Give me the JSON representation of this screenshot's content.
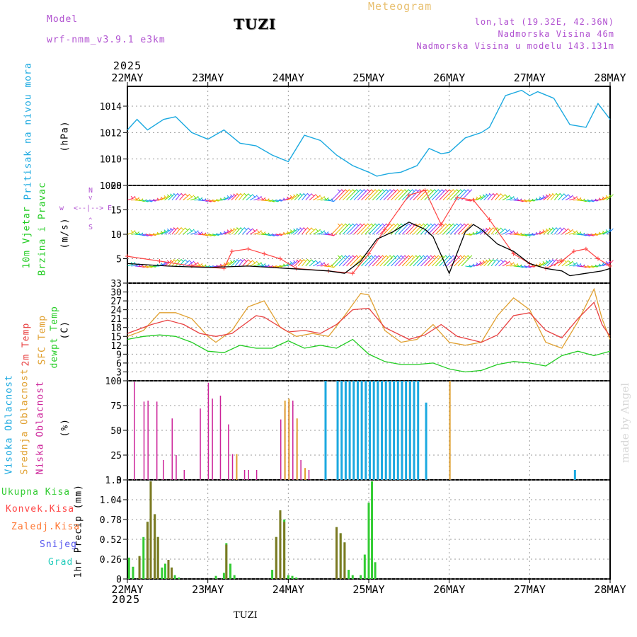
{
  "header": {
    "model_label": "Model",
    "model_name": "wrf-nmm_v3.9.1 e3km",
    "station": "TUZI",
    "meteogram": "Meteogram",
    "lonlat": "lon,lat (19.32E, 42.36N)",
    "altitude": "Nadmorska Visina 46m",
    "model_altitude": "Nadmorska Visina u modelu 143.131m",
    "year_top": "2025",
    "year_bottom": "2025",
    "footer_station": "TUZI",
    "credit": "made by Angel"
  },
  "colors": {
    "pressure": "#1ba9e0",
    "wind_speed": "#000000",
    "gust": "#ff4444",
    "t2m": "#e84040",
    "sfc": "#e0a030",
    "dewpoint": "#22cc22",
    "high_cloud": "#1ba9e0",
    "mid_cloud": "#e0a030",
    "low_cloud": "#cc2299",
    "total_precip": "#33cc33",
    "conv_precip": "#ff4444",
    "frozen": "#ff7733",
    "snow": "#5555ee",
    "hail": "#22ccbb",
    "purple_text": "#b050d0"
  },
  "chart_data": [
    {
      "type": "line",
      "title": "Pritisak na nivou mora",
      "ylabel": "Pritisak na nivou mora",
      "unit": "(hPa)",
      "ylim": [
        1008,
        1015.5
      ],
      "yticks": [
        "1008",
        "1010",
        "1012",
        "1014"
      ],
      "x_days": [
        "22MAY",
        "23MAY",
        "24MAY",
        "25MAY",
        "26MAY",
        "27MAY",
        "28MAY"
      ],
      "x": [
        0,
        0.12,
        0.25,
        0.45,
        0.6,
        0.8,
        1,
        1.2,
        1.4,
        1.6,
        1.8,
        2,
        2.2,
        2.4,
        2.6,
        2.8,
        3,
        3.1,
        3.25,
        3.4,
        3.6,
        3.75,
        3.9,
        4.0,
        4.2,
        4.4,
        4.5,
        4.7,
        4.9,
        5.0,
        5.1,
        5.3,
        5.5,
        5.7,
        5.85,
        6.0
      ],
      "values": [
        1012.2,
        1013.0,
        1012.2,
        1013.0,
        1013.2,
        1012.0,
        1011.5,
        1012.2,
        1011.2,
        1011.0,
        1010.3,
        1009.8,
        1011.8,
        1011.4,
        1010.3,
        1009.5,
        1009.0,
        1008.7,
        1008.9,
        1009.0,
        1009.5,
        1010.8,
        1010.4,
        1010.5,
        1011.6,
        1012.0,
        1012.4,
        1014.8,
        1015.2,
        1014.8,
        1015.1,
        1014.6,
        1012.6,
        1012.4,
        1014.2,
        1013.0
      ]
    },
    {
      "type": "line",
      "title": "10m Vjetar Brzina i Pravac",
      "ylabel": "10m Vjetar Brzina i Pravac",
      "unit": "(m/s)",
      "ylim": [
        0,
        20
      ],
      "yticks": [
        "5",
        "10",
        "15",
        "20"
      ],
      "compass": [
        "w",
        "E",
        "N",
        "S"
      ],
      "compass_arrows": [
        "<--|-->",
        "^",
        "v"
      ],
      "series": [
        {
          "name": "wind_speed",
          "x": [
            0,
            0.5,
            1,
            1.5,
            2,
            2.5,
            2.7,
            2.9,
            3.1,
            3.3,
            3.5,
            3.7,
            3.8,
            4.0,
            4.2,
            4.3,
            4.4,
            4.6,
            4.8,
            5.0,
            5.2,
            5.4,
            5.5,
            5.7,
            5.9,
            6.0
          ],
          "values": [
            4.0,
            3.5,
            3.2,
            3.5,
            3.0,
            2.5,
            2.0,
            4.5,
            9.0,
            10.5,
            12.5,
            11.0,
            9.5,
            2.0,
            10.5,
            12.0,
            11.0,
            8.0,
            6.5,
            4.0,
            3.0,
            2.5,
            1.5,
            2.0,
            2.5,
            3.0
          ]
        },
        {
          "name": "gust",
          "x": [
            0,
            0.4,
            0.8,
            1.2,
            1.3,
            1.5,
            1.7,
            1.9,
            2.1,
            2.5,
            2.8,
            3.0,
            3.2,
            3.5,
            3.7,
            3.9,
            4.1,
            4.3,
            4.5,
            4.8,
            5.0,
            5.2,
            5.4,
            5.55,
            5.7,
            5.85,
            6.0
          ],
          "values": [
            5.5,
            4.5,
            3.5,
            3.0,
            6.5,
            7.0,
            6.0,
            5.0,
            3.0,
            2.5,
            2.0,
            6.0,
            11.0,
            18.0,
            19.0,
            12.0,
            17.5,
            17.0,
            13.0,
            6.0,
            4.0,
            3.0,
            4.5,
            6.5,
            7.0,
            5.0,
            3.5
          ]
        }
      ],
      "barb_rows": [
        17,
        10,
        3.5
      ]
    },
    {
      "type": "line",
      "title": "2m Temp / SFC Temp / dewpt Temp",
      "unit": "(C)",
      "ylim": [
        0,
        33
      ],
      "yticks": [
        "3",
        "6",
        "9",
        "12",
        "15",
        "18",
        "21",
        "24",
        "27",
        "30",
        "33"
      ],
      "series": [
        {
          "name": "2m Temp",
          "x": [
            0,
            0.3,
            0.5,
            0.7,
            0.9,
            1.1,
            1.3,
            1.5,
            1.6,
            1.7,
            2.0,
            2.2,
            2.4,
            2.6,
            2.8,
            3.0,
            3.2,
            3.5,
            3.7,
            3.9,
            4.1,
            4.4,
            4.6,
            4.8,
            5.0,
            5.2,
            5.4,
            5.6,
            5.8,
            5.9,
            6.0
          ],
          "values": [
            16,
            19,
            20.5,
            19,
            16,
            15,
            16,
            20,
            22,
            21.5,
            16.5,
            17,
            16,
            19,
            24,
            24.5,
            18,
            14,
            15.5,
            19,
            15,
            13,
            15.5,
            22,
            23,
            17,
            14.5,
            21,
            26.5,
            19,
            15
          ]
        },
        {
          "name": "SFC Temp",
          "x": [
            0,
            0.2,
            0.4,
            0.6,
            0.8,
            1.0,
            1.1,
            1.3,
            1.5,
            1.7,
            1.9,
            2.1,
            2.3,
            2.5,
            2.7,
            2.9,
            3.0,
            3.2,
            3.4,
            3.6,
            3.8,
            4.0,
            4.2,
            4.4,
            4.6,
            4.8,
            5.0,
            5.2,
            5.4,
            5.6,
            5.8,
            5.9,
            6.0
          ],
          "values": [
            15,
            17,
            23,
            23,
            21,
            15,
            13,
            17,
            25,
            27,
            18,
            15,
            16,
            15,
            22,
            29.5,
            29,
            17,
            13,
            14,
            19,
            13,
            12,
            13,
            22,
            28,
            24,
            13,
            11,
            20,
            31,
            21,
            14
          ]
        },
        {
          "name": "dewpt Temp",
          "x": [
            0,
            0.2,
            0.4,
            0.6,
            0.8,
            1.0,
            1.2,
            1.4,
            1.6,
            1.8,
            2.0,
            2.2,
            2.4,
            2.6,
            2.8,
            3.0,
            3.2,
            3.4,
            3.6,
            3.8,
            4.0,
            4.2,
            4.4,
            4.6,
            4.8,
            5.0,
            5.2,
            5.4,
            5.6,
            5.8,
            6.0
          ],
          "values": [
            14,
            15,
            15.5,
            15,
            13,
            10,
            9.5,
            12,
            11,
            11,
            13.5,
            11,
            12,
            11,
            14,
            9,
            6.5,
            5.5,
            5.5,
            6,
            4,
            3,
            3.5,
            5.5,
            6.5,
            6,
            5,
            8.5,
            10,
            8.5,
            10
          ]
        }
      ]
    },
    {
      "type": "bar",
      "title": "Visoka / Srednja / Niska Oblacnost",
      "unit": "(%)",
      "ylim": [
        0,
        100
      ],
      "yticks": [
        "0",
        "25",
        "50",
        "75",
        "100"
      ],
      "series": [
        {
          "name": "Niska Oblacnost",
          "x": [
            0.08,
            0.2,
            0.25,
            0.36,
            0.44,
            0.55,
            0.6,
            0.7,
            0.9,
            1.0,
            1.05,
            1.15,
            1.25,
            1.3,
            1.35,
            1.45,
            1.5,
            1.6,
            1.9,
            1.95,
            2.0,
            2.05,
            2.1,
            2.15,
            2.25
          ],
          "values": [
            99,
            79,
            80,
            79,
            20,
            62,
            25,
            10,
            72,
            98,
            82,
            85,
            56,
            26,
            23,
            10,
            10,
            10,
            61,
            72,
            78,
            80,
            48,
            20,
            10
          ]
        },
        {
          "name": "Srednja Oblacnost",
          "x": [
            1.35,
            1.95,
            2.0,
            2.1,
            2.2,
            3.5,
            4.0
          ],
          "values": [
            26,
            80,
            82,
            62,
            12,
            100,
            100
          ]
        },
        {
          "name": "Visoka Oblacnost",
          "x": [
            2.45,
            2.6,
            2.65,
            2.7,
            2.75,
            2.8,
            2.85,
            2.9,
            2.95,
            3.0,
            3.05,
            3.1,
            3.15,
            3.2,
            3.25,
            3.3,
            3.35,
            3.4,
            3.45,
            3.5,
            3.55,
            3.6,
            3.7,
            5.55
          ],
          "values": [
            100,
            100,
            100,
            100,
            100,
            100,
            100,
            100,
            100,
            100,
            100,
            100,
            100,
            100,
            100,
            100,
            100,
            100,
            100,
            100,
            100,
            100,
            78,
            10
          ]
        }
      ]
    },
    {
      "type": "bar",
      "title": "1hr Precip",
      "ylabel": "1hr Precip",
      "unit": "(mm)",
      "ylim": [
        0,
        1.3
      ],
      "yticks": [
        "0",
        "0.26",
        "0.52",
        "0.78",
        "1.04",
        "1.3"
      ],
      "legend": [
        "Ukupna Kisa",
        "Konvek.Kisa",
        "Zaledj.Kisa",
        "Snijeg",
        "Grad"
      ],
      "series": [
        {
          "name": "Ukupna Kisa",
          "x": [
            0.02,
            0.07,
            0.15,
            0.2,
            0.25,
            0.29,
            0.34,
            0.38,
            0.43,
            0.47,
            0.51,
            0.55,
            0.59,
            0.64,
            1.1,
            1.2,
            1.23,
            1.28,
            1.33,
            1.8,
            1.85,
            1.9,
            1.95,
            2.0,
            2.05,
            2.1,
            2.6,
            2.65,
            2.7,
            2.75,
            2.8,
            2.9,
            2.95,
            3.0,
            3.04,
            3.08
          ],
          "values": [
            0.28,
            0.16,
            0.3,
            0.55,
            0.75,
            1.28,
            0.85,
            0.55,
            0.15,
            0.2,
            0.25,
            0.15,
            0.05,
            0.02,
            0.04,
            0.08,
            0.47,
            0.2,
            0.05,
            0.12,
            0.55,
            0.9,
            0.78,
            0.05,
            0.04,
            0.02,
            0.68,
            0.6,
            0.48,
            0.12,
            0.05,
            0.05,
            0.32,
            1.0,
            1.28,
            0.22
          ]
        },
        {
          "name": "Konvek.Kisa",
          "x": [
            0.15,
            0.25,
            0.29,
            0.34,
            0.38,
            0.51,
            0.55,
            1.23,
            1.85,
            1.9,
            1.95,
            2.6,
            2.65,
            2.7
          ],
          "values": [
            0.3,
            0.75,
            1.28,
            0.85,
            0.55,
            0.25,
            0.15,
            0.45,
            0.55,
            0.9,
            0.75,
            0.68,
            0.6,
            0.48
          ]
        }
      ]
    }
  ],
  "axis": {
    "top_days": [
      "22MAY",
      "23MAY",
      "24MAY",
      "25MAY",
      "26MAY",
      "27MAY",
      "28MAY"
    ],
    "bottom_days": [
      "22MAY",
      "23MAY",
      "24MAY",
      "25MAY",
      "26MAY",
      "27MAY",
      "28MAY"
    ]
  },
  "panel_labels": {
    "pressure_label": "Pritisak na nivou mora",
    "pressure_unit": "(hPa)",
    "wind_label1": "10m Vjetar",
    "wind_label2": "Brzina i Pravac",
    "wind_unit": "(m/s)",
    "temp_label1": "2m Temp",
    "temp_label2": "SFC Temp",
    "temp_label3": "dewpt Temp",
    "temp_unit": "(C)",
    "cloud_label1": "Visoka Oblacnost",
    "cloud_label2": "Srednja Oblacnost",
    "cloud_label3": "Niska Oblacnost",
    "cloud_unit": "(%)",
    "precip_label": "1hr Precip (mm)",
    "legend_total": "Ukupna Kisa",
    "legend_conv": "Konvek.Kisa",
    "legend_frozen": "Zaledj.Kisa",
    "legend_snow": "Snijeg",
    "legend_hail": "Grad"
  }
}
